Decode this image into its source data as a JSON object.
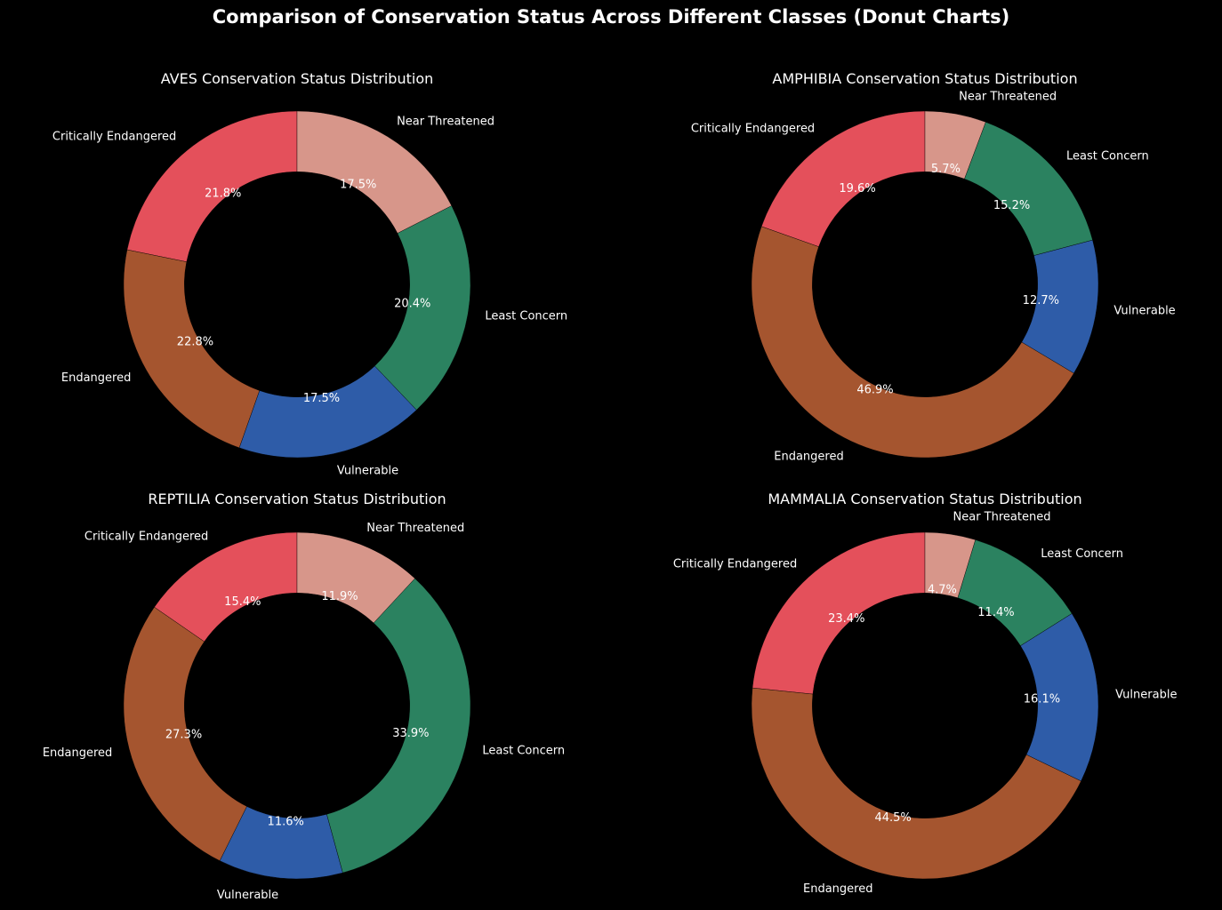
{
  "title": "Comparison of Conservation Status Across Different Classes (Donut Charts)",
  "colors": {
    "background": "#000000",
    "text": "#ffffff",
    "Critically Endangered": "#e4505b",
    "Endangered": "#a5552f",
    "Vulnerable": "#2e5ca8",
    "Least Concern": "#2b8260",
    "Near Threatened": "#d7968a"
  },
  "chart_data": [
    {
      "type": "pie",
      "variant": "donut",
      "title": "AVES Conservation Status Distribution",
      "categories": [
        "Critically Endangered",
        "Endangered",
        "Vulnerable",
        "Least Concern",
        "Near Threatened"
      ],
      "values": [
        21.8,
        22.8,
        17.5,
        20.4,
        17.5
      ],
      "value_labels": [
        "21.8%",
        "22.8%",
        "17.5%",
        "20.4%",
        "17.5%"
      ]
    },
    {
      "type": "pie",
      "variant": "donut",
      "title": "AMPHIBIA Conservation Status Distribution",
      "categories": [
        "Critically Endangered",
        "Endangered",
        "Vulnerable",
        "Least Concern",
        "Near Threatened"
      ],
      "values": [
        19.6,
        46.9,
        12.7,
        15.2,
        5.7
      ],
      "value_labels": [
        "19.6%",
        "46.9%",
        "12.7%",
        "15.2%",
        "5.7%"
      ]
    },
    {
      "type": "pie",
      "variant": "donut",
      "title": "REPTILIA Conservation Status Distribution",
      "categories": [
        "Critically Endangered",
        "Endangered",
        "Vulnerable",
        "Least Concern",
        "Near Threatened"
      ],
      "values": [
        15.4,
        27.3,
        11.6,
        33.9,
        11.9
      ],
      "value_labels": [
        "15.4%",
        "27.3%",
        "11.6%",
        "33.9%",
        "11.9%"
      ]
    },
    {
      "type": "pie",
      "variant": "donut",
      "title": "MAMMALIA Conservation Status Distribution",
      "categories": [
        "Critically Endangered",
        "Endangered",
        "Vulnerable",
        "Least Concern",
        "Near Threatened"
      ],
      "values": [
        23.4,
        44.5,
        16.1,
        11.4,
        4.7
      ],
      "value_labels": [
        "23.4%",
        "44.5%",
        "16.1%",
        "11.4%",
        "4.7%"
      ]
    }
  ]
}
